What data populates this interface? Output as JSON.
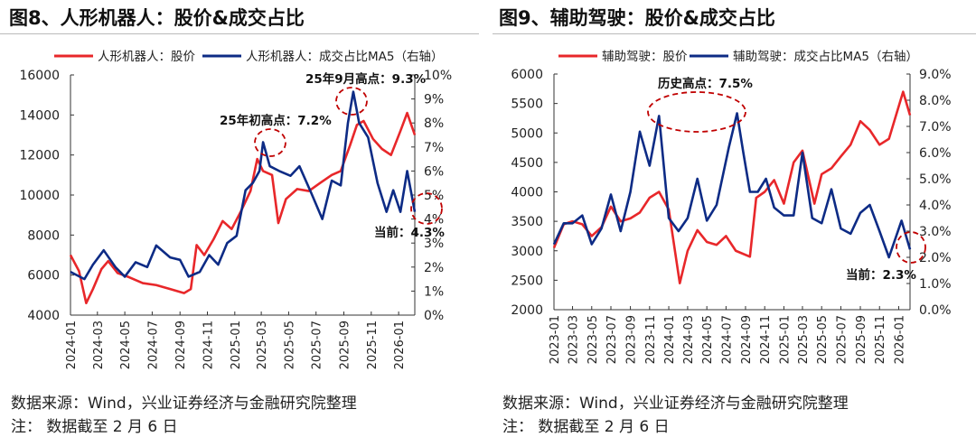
{
  "chart_data": [
    {
      "type": "line",
      "title": "图8、人形机器人：股价&成交占比",
      "xlim": [
        "2024-01-01",
        "2026-02-06"
      ],
      "ylim_left": [
        4000,
        16000
      ],
      "yticks_left": [
        "16000",
        "14000",
        "12000",
        "10000",
        "8000",
        "6000",
        "4000"
      ],
      "ylim_right": [
        0,
        10
      ],
      "yticks_right": [
        "10%",
        "9%",
        "8%",
        "7%",
        "6%",
        "5%",
        "4%",
        "3%",
        "2%",
        "1%",
        "0%"
      ],
      "xticks": [
        "2024-01",
        "2024-03",
        "2024-05",
        "2024-07",
        "2024-09",
        "2024-11",
        "2025-01",
        "2025-03",
        "2025-05",
        "2025-07",
        "2025-09",
        "2025-11",
        "2026-01"
      ],
      "series": [
        {
          "name": "人形机器人：股价",
          "axis": "left",
          "color": "#e8272a",
          "x": [
            "2024-01-01",
            "2024-01-20",
            "2024-02-05",
            "2024-02-20",
            "2024-03-10",
            "2024-03-25",
            "2024-04-15",
            "2024-05-10",
            "2024-06-10",
            "2024-07-10",
            "2024-08-10",
            "2024-09-10",
            "2024-09-25",
            "2024-10-08",
            "2024-10-25",
            "2024-11-15",
            "2024-12-05",
            "2024-12-25",
            "2025-01-15",
            "2025-02-05",
            "2025-02-20",
            "2025-03-05",
            "2025-03-25",
            "2025-04-08",
            "2025-04-25",
            "2025-05-20",
            "2025-06-15",
            "2025-07-10",
            "2025-08-05",
            "2025-08-25",
            "2025-09-15",
            "2025-09-30",
            "2025-10-15",
            "2025-11-05",
            "2025-11-25",
            "2025-12-15",
            "2026-01-05",
            "2026-01-20",
            "2026-02-06"
          ],
          "y": [
            7000,
            6200,
            4600,
            5300,
            6300,
            6700,
            6100,
            5900,
            5600,
            5500,
            5300,
            5100,
            5300,
            7500,
            7000,
            7800,
            8700,
            8300,
            9200,
            10200,
            11800,
            11200,
            11000,
            8600,
            9800,
            10300,
            10200,
            10600,
            11000,
            11200,
            12500,
            13500,
            13700,
            12800,
            12300,
            12000,
            13200,
            14100,
            13000
          ]
        },
        {
          "name": "人形机器人：成交占比MA5（右轴）",
          "axis": "right",
          "color": "#0d2b85",
          "x": [
            "2024-01-01",
            "2024-02-01",
            "2024-02-20",
            "2024-03-15",
            "2024-04-10",
            "2024-05-01",
            "2024-05-25",
            "2024-06-20",
            "2024-07-10",
            "2024-08-10",
            "2024-09-01",
            "2024-09-20",
            "2024-10-15",
            "2024-11-05",
            "2024-11-25",
            "2024-12-15",
            "2025-01-05",
            "2025-01-25",
            "2025-02-10",
            "2025-02-25",
            "2025-03-05",
            "2025-03-20",
            "2025-04-10",
            "2025-05-05",
            "2025-05-25",
            "2025-06-20",
            "2025-07-15",
            "2025-08-05",
            "2025-08-25",
            "2025-09-10",
            "2025-09-22",
            "2025-10-05",
            "2025-10-25",
            "2025-11-15",
            "2025-12-05",
            "2025-12-20",
            "2026-01-05",
            "2026-01-20",
            "2026-02-06"
          ],
          "y": [
            1.8,
            1.5,
            2.1,
            2.7,
            2.0,
            1.6,
            2.2,
            2.0,
            2.9,
            2.4,
            2.3,
            1.6,
            1.8,
            2.5,
            2.1,
            3.0,
            3.3,
            5.2,
            5.5,
            6.0,
            7.2,
            6.2,
            6.0,
            5.8,
            6.2,
            5.1,
            4.0,
            5.6,
            5.4,
            8.0,
            9.3,
            8.0,
            7.4,
            5.5,
            4.3,
            5.2,
            4.3,
            6.0,
            4.3
          ]
        }
      ],
      "annotations": [
        "25年初高点：7.2%",
        "25年9月高点：9.3%",
        "当前：4.3%"
      ]
    },
    {
      "type": "line",
      "title": "图9、辅助驾驶：股价&成交占比",
      "xlim": [
        "2023-01-01",
        "2026-02-06"
      ],
      "ylim_left": [
        2000,
        6000
      ],
      "yticks_left": [
        "6000",
        "5500",
        "5000",
        "4500",
        "4000",
        "3500",
        "3000",
        "2500",
        "2000"
      ],
      "ylim_right": [
        0,
        9
      ],
      "yticks_right": [
        "9.0%",
        "8.0%",
        "7.0%",
        "6.0%",
        "5.0%",
        "4.0%",
        "3.0%",
        "2.0%",
        "1.0%",
        "0.0%"
      ],
      "xticks": [
        "2023-01",
        "2023-03",
        "2023-05",
        "2023-07",
        "2023-09",
        "2023-11",
        "2024-01",
        "2024-03",
        "2024-05",
        "2024-07",
        "2024-09",
        "2024-11",
        "2025-01",
        "2025-03",
        "2025-05",
        "2025-07",
        "2025-09",
        "2025-11",
        "2026-01"
      ],
      "series": [
        {
          "name": "辅助驾驶：股价",
          "axis": "left",
          "color": "#e8272a",
          "x": [
            "2023-01-01",
            "2023-02-01",
            "2023-03-01",
            "2023-04-01",
            "2023-05-01",
            "2023-06-01",
            "2023-07-01",
            "2023-08-01",
            "2023-09-01",
            "2023-10-01",
            "2023-11-01",
            "2023-12-01",
            "2024-01-01",
            "2024-02-05",
            "2024-03-01",
            "2024-04-01",
            "2024-05-01",
            "2024-06-01",
            "2024-07-01",
            "2024-08-01",
            "2024-09-15",
            "2024-10-05",
            "2024-11-01",
            "2024-12-01",
            "2025-01-01",
            "2025-02-01",
            "2025-03-01",
            "2025-04-08",
            "2025-05-01",
            "2025-06-01",
            "2025-07-01",
            "2025-08-01",
            "2025-09-01",
            "2025-10-01",
            "2025-11-01",
            "2025-12-01",
            "2026-01-15",
            "2026-02-06"
          ],
          "y": [
            3050,
            3450,
            3500,
            3450,
            3250,
            3400,
            3750,
            3500,
            3550,
            3650,
            3900,
            4000,
            3700,
            2450,
            3000,
            3350,
            3150,
            3100,
            3250,
            3000,
            2900,
            3900,
            4000,
            4200,
            3800,
            4500,
            4700,
            3800,
            4300,
            4400,
            4600,
            4800,
            5200,
            5050,
            4800,
            4900,
            5700,
            5300
          ]
        },
        {
          "name": "辅助驾驶：成交占比MA5（右轴）",
          "axis": "right",
          "color": "#0d2b85",
          "x": [
            "2023-01-01",
            "2023-02-01",
            "2023-03-01",
            "2023-04-01",
            "2023-05-01",
            "2023-06-01",
            "2023-07-01",
            "2023-08-01",
            "2023-09-01",
            "2023-10-01",
            "2023-11-01",
            "2023-12-01",
            "2024-01-01",
            "2024-02-01",
            "2024-03-01",
            "2024-04-01",
            "2024-05-01",
            "2024-06-01",
            "2024-07-10",
            "2024-08-05",
            "2024-08-25",
            "2024-09-15",
            "2024-10-10",
            "2024-11-05",
            "2024-12-01",
            "2025-01-01",
            "2025-02-01",
            "2025-03-01",
            "2025-04-01",
            "2025-05-01",
            "2025-06-01",
            "2025-07-01",
            "2025-08-01",
            "2025-09-01",
            "2025-10-01",
            "2025-11-01",
            "2025-12-01",
            "2026-01-10",
            "2026-02-06"
          ],
          "y": [
            2.5,
            3.3,
            3.3,
            3.6,
            2.5,
            3.1,
            4.4,
            3.0,
            4.5,
            6.8,
            5.5,
            7.4,
            3.5,
            3.0,
            3.5,
            5.0,
            3.4,
            4.0,
            6.2,
            7.5,
            6.0,
            4.5,
            4.5,
            5.0,
            3.9,
            3.6,
            3.6,
            6.0,
            3.5,
            3.3,
            4.6,
            3.1,
            2.9,
            3.7,
            4.0,
            3.0,
            2.0,
            3.4,
            2.3
          ]
        }
      ],
      "annotations": [
        "历史高点：7.5%",
        "当前：2.3%"
      ]
    }
  ],
  "footer": {
    "source": "数据来源：Wind，兴业证券经济与金融研究院整理",
    "note": "注：  数据截至 2 月 6 日"
  },
  "colors": {
    "price": "#e8272a",
    "ratio": "#0d2b85",
    "annotation": "#c00000"
  }
}
